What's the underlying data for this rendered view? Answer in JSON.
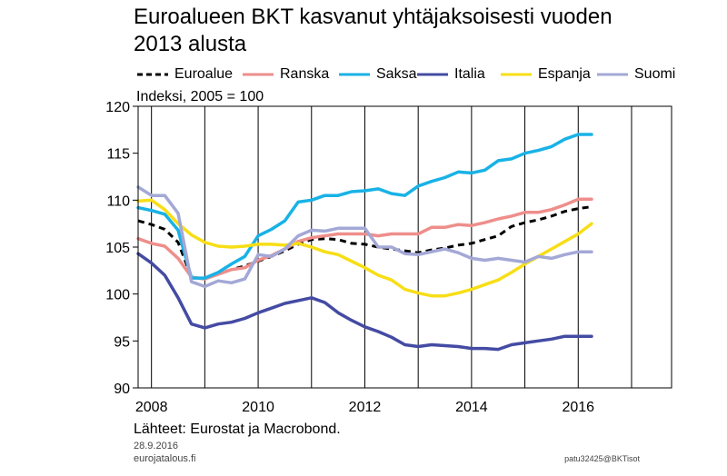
{
  "title_line1": "Euroalueen BKT kasvanut yhtäjaksoisesti vuoden",
  "title_line2": "2013 alusta",
  "unit_label": "Indeksi, 2005 = 100",
  "source": "Lähteet: Eurostat ja Macrobond.",
  "date": "28.9.2016",
  "site": "eurojatalous.fi",
  "code": "patu32425@BKTisot",
  "chart_data": {
    "type": "line",
    "title": "Euroalueen BKT kasvanut yhtäjaksoisesti vuoden 2013 alusta",
    "ylabel": "Indeksi, 2005 = 100",
    "xlabel": "",
    "xlim": [
      2007.75,
      2017.75
    ],
    "ylim": [
      90,
      120
    ],
    "yticks": [
      90,
      95,
      100,
      105,
      110,
      115,
      120
    ],
    "xtick_labels": [
      "2008",
      "2010",
      "2012",
      "2014",
      "2016"
    ],
    "xtick_label_positions": [
      2008,
      2010,
      2012,
      2014,
      2016
    ],
    "grid": "vertical",
    "legend_position": "top",
    "x": [
      2007.75,
      2008.0,
      2008.25,
      2008.5,
      2008.75,
      2009.0,
      2009.25,
      2009.5,
      2009.75,
      2010.0,
      2010.25,
      2010.5,
      2010.75,
      2011.0,
      2011.25,
      2011.5,
      2011.75,
      2012.0,
      2012.25,
      2012.5,
      2012.75,
      2013.0,
      2013.25,
      2013.5,
      2013.75,
      2014.0,
      2014.25,
      2014.5,
      2014.75,
      2015.0,
      2015.25,
      2015.5,
      2015.75,
      2016.0,
      2016.25
    ],
    "series": [
      {
        "name": "Euroalue",
        "color": "#000000",
        "dash": true,
        "values": [
          107.8,
          107.4,
          106.9,
          105.5,
          101.8,
          101.6,
          102.2,
          102.6,
          103.0,
          103.5,
          104.0,
          104.6,
          105.3,
          105.8,
          105.9,
          105.8,
          105.4,
          105.3,
          105.0,
          104.8,
          104.6,
          104.4,
          104.7,
          104.9,
          105.2,
          105.4,
          105.8,
          106.2,
          107.2,
          107.6,
          107.9,
          108.3,
          108.8,
          109.1,
          109.3
        ]
      },
      {
        "name": "Ranska",
        "color": "#ee8e8b",
        "values": [
          105.9,
          105.4,
          105.1,
          103.8,
          101.8,
          101.6,
          102.1,
          102.6,
          102.8,
          103.6,
          104.1,
          104.8,
          105.6,
          106.0,
          106.2,
          106.4,
          106.4,
          106.4,
          106.2,
          106.4,
          106.4,
          106.4,
          107.1,
          107.1,
          107.4,
          107.3,
          107.6,
          108.0,
          108.3,
          108.7,
          108.7,
          109.0,
          109.5,
          110.1,
          110.1
        ]
      },
      {
        "name": "Saksa",
        "color": "#18b2e6",
        "values": [
          109.2,
          108.9,
          108.5,
          106.8,
          101.7,
          101.7,
          102.3,
          103.2,
          104.0,
          106.2,
          106.9,
          107.8,
          109.8,
          110.0,
          110.5,
          110.5,
          110.9,
          111.0,
          111.2,
          110.7,
          110.5,
          111.5,
          112.0,
          112.4,
          113.0,
          112.9,
          113.2,
          114.2,
          114.4,
          115.0,
          115.3,
          115.7,
          116.5,
          117.0,
          117.0
        ]
      },
      {
        "name": "Italia",
        "color": "#444ba3",
        "values": [
          104.3,
          103.3,
          102.0,
          99.6,
          96.8,
          96.4,
          96.8,
          97.0,
          97.4,
          98.0,
          98.5,
          99.0,
          99.3,
          99.6,
          99.1,
          98.0,
          97.2,
          96.5,
          96.0,
          95.4,
          94.6,
          94.4,
          94.6,
          94.5,
          94.4,
          94.2,
          94.2,
          94.1,
          94.6,
          94.8,
          95.0,
          95.2,
          95.5,
          95.5,
          95.5
        ]
      },
      {
        "name": "Espanja",
        "color": "#f7de16",
        "values": [
          109.9,
          110.0,
          109.0,
          107.5,
          106.3,
          105.5,
          105.1,
          105.0,
          105.1,
          105.3,
          105.3,
          105.2,
          105.4,
          105.0,
          104.5,
          104.2,
          103.5,
          102.8,
          102.0,
          101.5,
          100.5,
          100.1,
          99.8,
          99.8,
          100.1,
          100.5,
          101.0,
          101.5,
          102.3,
          103.2,
          104.0,
          104.8,
          105.6,
          106.4,
          107.5
        ]
      },
      {
        "name": "Suomi",
        "color": "#a3a8d6",
        "values": [
          111.4,
          110.5,
          110.5,
          108.6,
          101.3,
          100.8,
          101.4,
          101.2,
          101.6,
          104.2,
          104.0,
          104.8,
          106.2,
          106.8,
          106.7,
          107.0,
          107.0,
          107.0,
          105.0,
          105.0,
          104.3,
          104.2,
          104.5,
          104.8,
          104.4,
          103.8,
          103.6,
          103.8,
          103.6,
          103.4,
          104.0,
          103.8,
          104.2,
          104.5,
          104.5
        ]
      }
    ]
  }
}
